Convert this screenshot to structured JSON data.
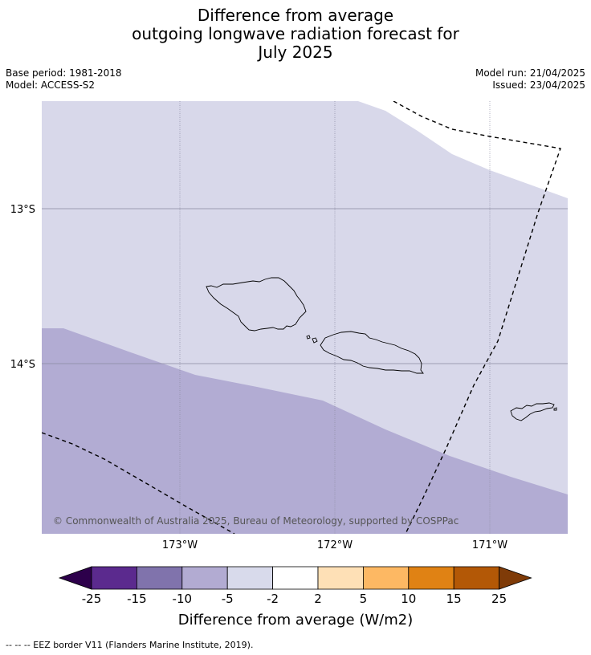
{
  "title": {
    "line1": "Difference from average",
    "line2": "outgoing longwave radiation forecast for",
    "line3": "July 2025"
  },
  "meta": {
    "base_period": "Base period: 1981-2018",
    "model": "Model: ACCESS-S2",
    "model_run": "Model run: 21/04/2025",
    "issued": "Issued: 23/04/2025"
  },
  "map": {
    "lat_labels": [
      "13°S",
      "14°S"
    ],
    "lon_labels": [
      "173°W",
      "172°W",
      "171°W"
    ],
    "copyright": "© Commonwealth of Australia 2025, Bureau of Meteorology, supported by COSPPac",
    "colors": {
      "light_band": "#d8d8ea",
      "mid_band": "#b2acd3",
      "gridline": "#8a8aa0",
      "eez_border": "#000000"
    }
  },
  "colorbar": {
    "title": "Difference from average (W/m2)",
    "tick_labels": [
      "-25",
      "-15",
      "-10",
      "-5",
      "-2",
      "2",
      "5",
      "10",
      "15",
      "25"
    ],
    "colors": [
      "#2d004b",
      "#5b2a8e",
      "#8073ac",
      "#b2abd2",
      "#d8daeb",
      "#ffffff",
      "#fee0b6",
      "#fdb863",
      "#e08214",
      "#b35806",
      "#7f3b08"
    ]
  },
  "footer": {
    "legend": "-- -- -- EEZ border V11 (Flanders Marine Institute, 2019)."
  }
}
